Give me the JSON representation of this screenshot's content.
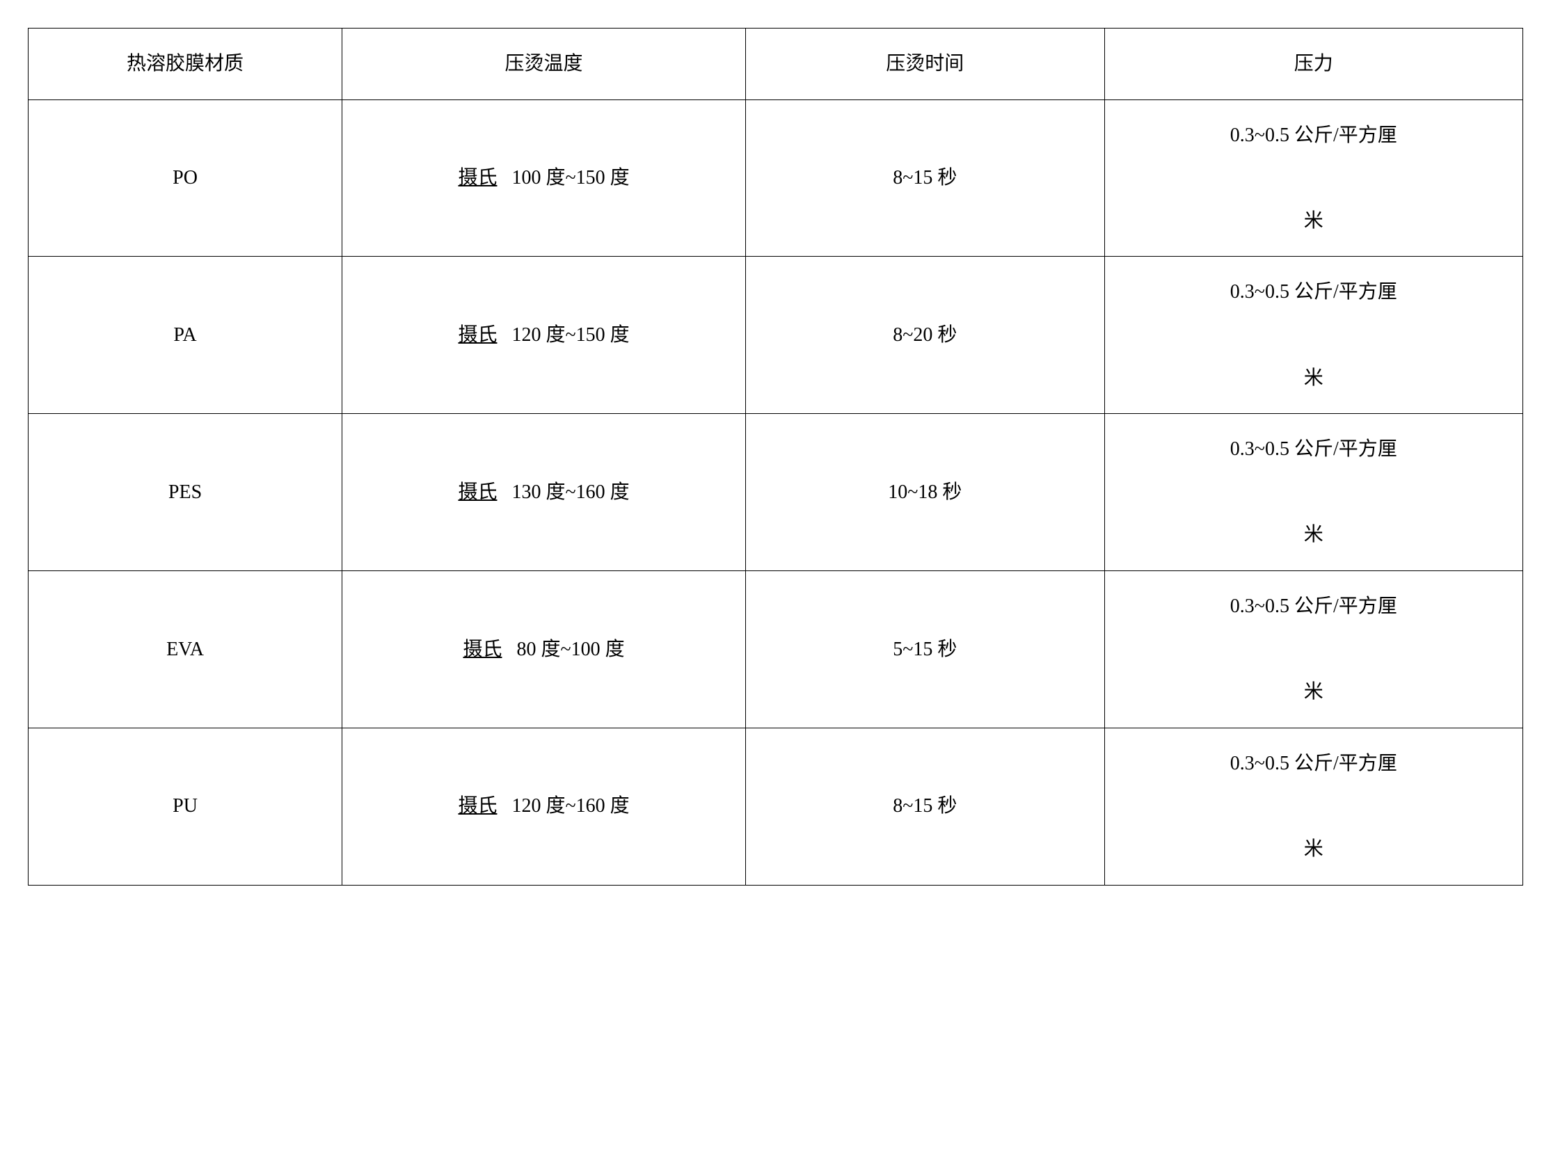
{
  "table": {
    "columns": [
      "热溶胶膜材质",
      "压烫温度",
      "压烫时间",
      "压力"
    ],
    "rows": [
      {
        "material": "PO",
        "temp_prefix": "摄氏",
        "temp_range": "100 度~150 度",
        "time": "8~15 秒",
        "pressure_line1": "0.3~0.5 公斤/平方厘",
        "pressure_line2": "米"
      },
      {
        "material": "PA",
        "temp_prefix": "摄氏",
        "temp_range": "120 度~150 度",
        "time": "8~20 秒",
        "pressure_line1": "0.3~0.5 公斤/平方厘",
        "pressure_line2": "米"
      },
      {
        "material": "PES",
        "temp_prefix": "摄氏",
        "temp_range": "130 度~160 度",
        "time": "10~18 秒",
        "pressure_line1": "0.3~0.5 公斤/平方厘",
        "pressure_line2": "米"
      },
      {
        "material": "EVA",
        "temp_prefix": "摄氏",
        "temp_range": "80 度~100 度",
        "time": "5~15 秒",
        "pressure_line1": "0.3~0.5 公斤/平方厘",
        "pressure_line2": "米"
      },
      {
        "material": "PU",
        "temp_prefix": "摄氏",
        "temp_range": "120 度~160 度",
        "time": "8~15 秒",
        "pressure_line1": "0.3~0.5 公斤/平方厘",
        "pressure_line2": "米"
      }
    ],
    "border_color": "#000000",
    "background_color": "#ffffff",
    "font_size_pt": 20
  }
}
